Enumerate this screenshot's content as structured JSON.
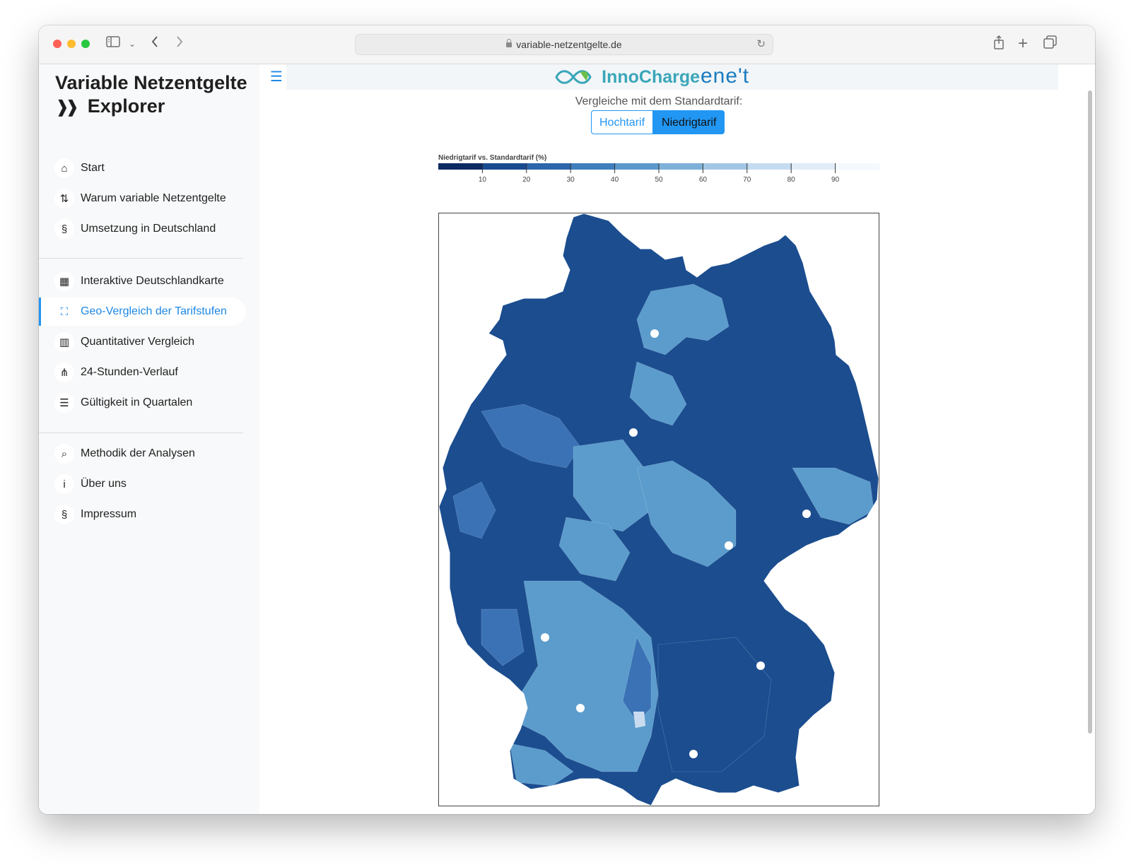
{
  "browser": {
    "url": "variable-netzentgelte.de"
  },
  "sidebar": {
    "brand_line1": "Variable Netzentgelte",
    "brand_line2": "Explorer",
    "groups": [
      [
        {
          "label": "Start",
          "icon": "home-icon",
          "glyph": "⌂"
        },
        {
          "label": "Warum variable Netzentgelte",
          "icon": "sort-arrows-icon",
          "glyph": "⇅"
        },
        {
          "label": "Umsetzung in Deutschland",
          "icon": "paragraph-icon",
          "glyph": "§"
        }
      ],
      [
        {
          "label": "Interaktive Deutschlandkarte",
          "icon": "map-marker-icon",
          "glyph": "▦"
        },
        {
          "label": "Geo-Vergleich der Tarifstufen",
          "icon": "expand-icon",
          "glyph": "⛶",
          "active": true
        },
        {
          "label": "Quantitativer Vergleich",
          "icon": "bar-chart-icon",
          "glyph": "▥"
        },
        {
          "label": "24-Stunden-Verlauf",
          "icon": "network-icon",
          "glyph": "⋔"
        },
        {
          "label": "Gültigkeit in Quartalen",
          "icon": "numbered-list-icon",
          "glyph": "☰"
        }
      ],
      [
        {
          "label": "Methodik der Analysen",
          "icon": "search-icon",
          "glyph": "⌕"
        },
        {
          "label": "Über uns",
          "icon": "info-icon",
          "glyph": "i"
        },
        {
          "label": "Impressum",
          "icon": "paragraph-icon",
          "glyph": "§"
        }
      ]
    ]
  },
  "header": {
    "logo_inno": "InnoCharge",
    "logo_enet": "ene't"
  },
  "compare": {
    "label": "Vergleiche mit dem Standardtarif:",
    "options": [
      "Hochtarif",
      "Niedrigtarif"
    ],
    "selected": "Niedrigtarif"
  },
  "chart_data": {
    "type": "choropleth",
    "legend_title": "Niedrigtarif vs. Standardtarif (%)",
    "ticks": [
      10,
      20,
      30,
      40,
      50,
      60,
      70,
      80,
      90
    ],
    "range": [
      0,
      100
    ],
    "colors": [
      "#0d2a63",
      "#184a8f",
      "#2b66ab",
      "#3f7ebd",
      "#5a98cb",
      "#7fb0d9",
      "#a3c6e6",
      "#c5dbf0",
      "#e1ecf8",
      "#f4f9fe"
    ],
    "region_colors": {
      "dominant": "#1b4d8f",
      "secondary": "#5b9ccc",
      "tertiary": "#3a72b5",
      "light": "#c9dcef"
    }
  }
}
